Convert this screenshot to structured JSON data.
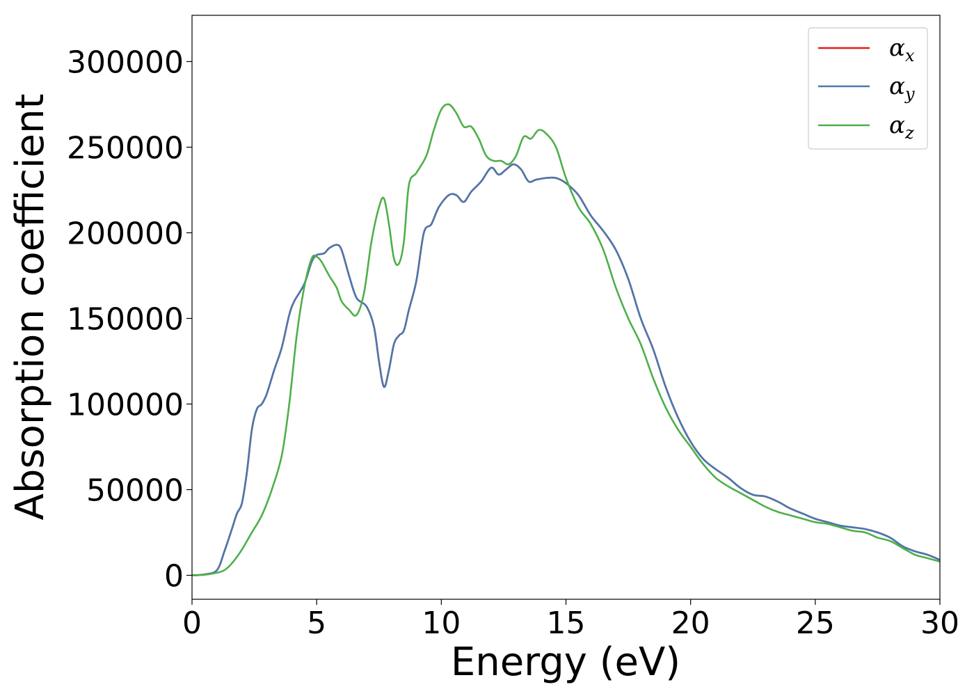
{
  "chart_data": {
    "type": "line",
    "title": "",
    "xlabel": "Energy (eV)",
    "ylabel": "Absorption coefficient",
    "xlim": [
      0,
      30
    ],
    "ylim": [
      -14000,
      327000
    ],
    "xticks": [
      0,
      5,
      10,
      15,
      20,
      25,
      30
    ],
    "yticks": [
      0,
      50000,
      100000,
      150000,
      200000,
      250000,
      300000
    ],
    "grid": false,
    "legend_position": "top-right",
    "series": [
      {
        "name": "αx",
        "label_base": "α",
        "label_sub": "x",
        "color": "#e41a1c",
        "x": [
          0,
          0.5,
          1.0,
          1.3,
          1.6,
          1.8,
          2.0,
          2.2,
          2.4,
          2.6,
          2.8,
          3.0,
          3.3,
          3.6,
          3.9,
          4.1,
          4.5,
          4.8,
          5.0,
          5.3,
          5.5,
          5.8,
          6.0,
          6.3,
          6.6,
          7.0,
          7.3,
          7.5,
          7.7,
          7.9,
          8.1,
          8.3,
          8.5,
          8.7,
          9.0,
          9.3,
          9.6,
          9.9,
          10.3,
          10.6,
          10.9,
          11.2,
          11.6,
          12.0,
          12.3,
          12.6,
          12.9,
          13.2,
          13.5,
          13.8,
          14.2,
          14.6,
          15.0,
          15.5,
          16.0,
          16.5,
          17.0,
          17.5,
          18.0,
          18.5,
          19.0,
          19.5,
          20.0,
          20.5,
          21.0,
          21.5,
          22.0,
          22.5,
          23.0,
          23.5,
          24.0,
          24.5,
          25.0,
          25.5,
          26.0,
          26.5,
          27.0,
          27.5,
          28.0,
          28.5,
          29.0,
          29.5,
          30.0
        ],
        "y": [
          0,
          500,
          3000,
          14000,
          27000,
          36000,
          42000,
          60000,
          85000,
          97000,
          100000,
          106000,
          120000,
          133000,
          152000,
          160000,
          170000,
          183000,
          187000,
          188000,
          191000,
          193000,
          190000,
          175000,
          162000,
          157000,
          145000,
          125000,
          110000,
          120000,
          135000,
          140000,
          143000,
          155000,
          172000,
          200000,
          205000,
          215000,
          222000,
          222000,
          218000,
          224000,
          230000,
          238000,
          234000,
          237000,
          240000,
          237000,
          230000,
          231000,
          232000,
          232000,
          229000,
          222000,
          210000,
          201000,
          190000,
          173000,
          150000,
          132000,
          110000,
          92000,
          78000,
          68000,
          62000,
          57000,
          51000,
          47000,
          46000,
          43000,
          39000,
          36000,
          33000,
          31000,
          29000,
          28000,
          27000,
          25000,
          22000,
          17000,
          14000,
          12000,
          9000
        ]
      },
      {
        "name": "αy",
        "label_base": "α",
        "label_sub": "y",
        "color": "#4a78ad",
        "x": [
          0,
          0.5,
          1.0,
          1.3,
          1.6,
          1.8,
          2.0,
          2.2,
          2.4,
          2.6,
          2.8,
          3.0,
          3.3,
          3.6,
          3.9,
          4.1,
          4.5,
          4.8,
          5.0,
          5.3,
          5.5,
          5.8,
          6.0,
          6.3,
          6.6,
          7.0,
          7.3,
          7.5,
          7.7,
          7.9,
          8.1,
          8.3,
          8.5,
          8.7,
          9.0,
          9.3,
          9.6,
          9.9,
          10.3,
          10.6,
          10.9,
          11.2,
          11.6,
          12.0,
          12.3,
          12.6,
          12.9,
          13.2,
          13.5,
          13.8,
          14.2,
          14.6,
          15.0,
          15.5,
          16.0,
          16.5,
          17.0,
          17.5,
          18.0,
          18.5,
          19.0,
          19.5,
          20.0,
          20.5,
          21.0,
          21.5,
          22.0,
          22.5,
          23.0,
          23.5,
          24.0,
          24.5,
          25.0,
          25.5,
          26.0,
          26.5,
          27.0,
          27.5,
          28.0,
          28.5,
          29.0,
          29.5,
          30.0
        ],
        "y": [
          0,
          500,
          3000,
          14000,
          27000,
          36000,
          42000,
          60000,
          85000,
          97000,
          100000,
          106000,
          120000,
          133000,
          152000,
          160000,
          170000,
          183000,
          187000,
          188000,
          191000,
          193000,
          190000,
          175000,
          162000,
          157000,
          145000,
          125000,
          110000,
          120000,
          135000,
          140000,
          143000,
          155000,
          172000,
          200000,
          205000,
          215000,
          222000,
          222000,
          218000,
          224000,
          230000,
          238000,
          234000,
          237000,
          240000,
          237000,
          230000,
          231000,
          232000,
          232000,
          229000,
          222000,
          210000,
          201000,
          190000,
          173000,
          150000,
          132000,
          110000,
          92000,
          78000,
          68000,
          62000,
          57000,
          51000,
          47000,
          46000,
          43000,
          39000,
          36000,
          33000,
          31000,
          29000,
          28000,
          27000,
          25000,
          22000,
          17000,
          14000,
          12000,
          9000
        ]
      },
      {
        "name": "αz",
        "label_base": "α",
        "label_sub": "z",
        "color": "#4daf4a",
        "x": [
          0,
          0.5,
          1.0,
          1.3,
          1.6,
          2.0,
          2.4,
          2.8,
          3.2,
          3.6,
          3.9,
          4.2,
          4.5,
          4.8,
          5.0,
          5.2,
          5.5,
          5.8,
          6.0,
          6.3,
          6.6,
          6.9,
          7.2,
          7.5,
          7.7,
          7.9,
          8.1,
          8.3,
          8.5,
          8.7,
          9.0,
          9.4,
          9.7,
          10.0,
          10.3,
          10.6,
          10.9,
          11.2,
          11.5,
          11.8,
          12.1,
          12.4,
          12.7,
          13.0,
          13.3,
          13.6,
          13.9,
          14.2,
          14.6,
          15.0,
          15.5,
          16.0,
          16.5,
          17.0,
          17.5,
          18.0,
          18.5,
          19.0,
          19.5,
          20.0,
          20.5,
          21.0,
          21.5,
          22.0,
          22.5,
          23.0,
          23.5,
          24.0,
          24.5,
          25.0,
          25.5,
          26.0,
          26.5,
          27.0,
          27.5,
          28.0,
          28.5,
          29.0,
          29.5,
          30.0
        ],
        "y": [
          0,
          300,
          1500,
          3000,
          7000,
          15000,
          25000,
          35000,
          50000,
          70000,
          100000,
          140000,
          168000,
          185000,
          186000,
          183000,
          175000,
          168000,
          160000,
          155000,
          152000,
          165000,
          195000,
          215000,
          220000,
          205000,
          185000,
          182000,
          195000,
          228000,
          235000,
          245000,
          260000,
          272000,
          275000,
          270000,
          262000,
          262000,
          255000,
          245000,
          242000,
          242000,
          240000,
          245000,
          256000,
          255000,
          260000,
          258000,
          250000,
          232000,
          215000,
          205000,
          190000,
          168000,
          150000,
          135000,
          115000,
          98000,
          85000,
          75000,
          65000,
          57000,
          52000,
          48000,
          44000,
          40000,
          37000,
          35000,
          33000,
          31000,
          30000,
          28000,
          26000,
          25000,
          22000,
          20000,
          16000,
          12000,
          10000,
          8000
        ]
      }
    ]
  }
}
